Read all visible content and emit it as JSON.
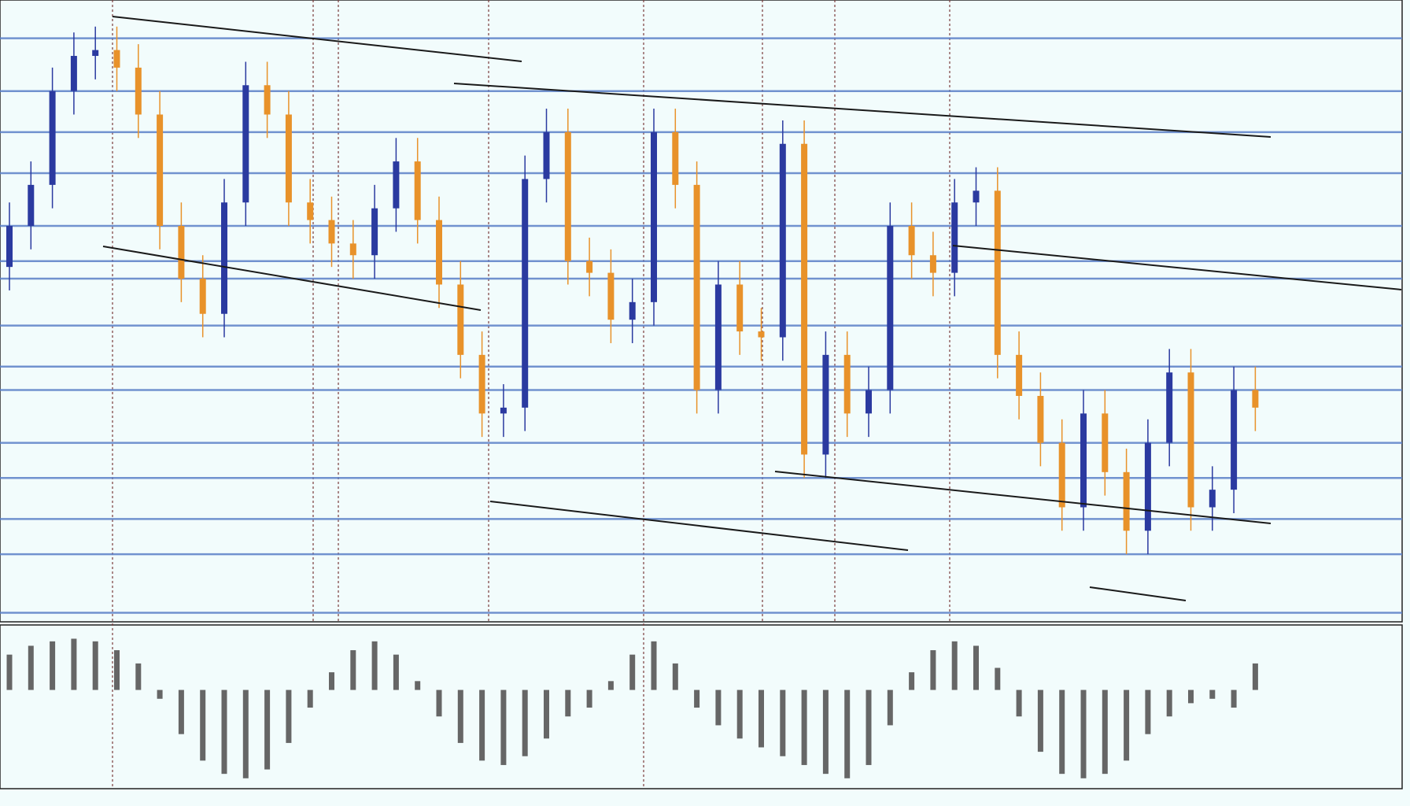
{
  "chart_data": {
    "type": "candlestick",
    "open": [
      60,
      67,
      74,
      90,
      96,
      97,
      94,
      86,
      67,
      58,
      52,
      71,
      91,
      86,
      71,
      68,
      64,
      62,
      70,
      78,
      68,
      57,
      45,
      35,
      36,
      75,
      83,
      61,
      59,
      51,
      54,
      83,
      74,
      39,
      57,
      49,
      48,
      81,
      28,
      45,
      35,
      39,
      67,
      62,
      59,
      71,
      73,
      45,
      38,
      30,
      19,
      35,
      25,
      15,
      30,
      42,
      19,
      22,
      39
    ],
    "high": [
      71,
      78,
      94,
      100,
      101,
      101,
      98,
      90,
      71,
      62,
      75,
      95,
      95,
      90,
      75,
      72,
      68,
      74,
      82,
      82,
      72,
      61,
      49,
      40,
      79,
      87,
      87,
      65,
      63,
      58,
      87,
      87,
      78,
      61,
      61,
      53,
      85,
      85,
      49,
      49,
      43,
      71,
      71,
      66,
      75,
      77,
      77,
      49,
      42,
      34,
      39,
      39,
      29,
      34,
      46,
      46,
      26,
      43,
      43
    ],
    "low": [
      56,
      63,
      70,
      86,
      92,
      90,
      82,
      63,
      54,
      48,
      48,
      67,
      82,
      67,
      64,
      60,
      58,
      58,
      66,
      64,
      53,
      41,
      31,
      31,
      32,
      71,
      57,
      55,
      47,
      47,
      50,
      70,
      35,
      35,
      45,
      44,
      44,
      24,
      24,
      31,
      31,
      35,
      58,
      55,
      55,
      67,
      41,
      34,
      26,
      15,
      15,
      21,
      11,
      11,
      26,
      15,
      15,
      18,
      32
    ],
    "close": [
      67,
      74,
      90,
      96,
      97,
      94,
      86,
      67,
      58,
      52,
      71,
      91,
      86,
      71,
      68,
      64,
      62,
      70,
      78,
      68,
      57,
      45,
      35,
      36,
      75,
      83,
      61,
      59,
      51,
      54,
      83,
      74,
      39,
      57,
      49,
      48,
      81,
      28,
      45,
      35,
      39,
      67,
      62,
      59,
      71,
      73,
      45,
      38,
      30,
      19,
      35,
      25,
      15,
      30,
      42,
      19,
      22,
      39,
      36
    ],
    "up_color": "#2b3aa0",
    "down_color": "#e8922a",
    "ylim": [
      0,
      105
    ],
    "levels": [
      99,
      90,
      83,
      76,
      67,
      61,
      58,
      50,
      43,
      39,
      30,
      24,
      17,
      11,
      1
    ],
    "level_color": "#5b80c8",
    "oscillator": {
      "type": "bar",
      "color": "#666666",
      "ylim": [
        -110,
        70
      ],
      "values": [
        40,
        50,
        55,
        58,
        55,
        45,
        30,
        -10,
        -50,
        -80,
        -95,
        -100,
        -90,
        -60,
        -20,
        20,
        45,
        55,
        40,
        10,
        -30,
        -60,
        -80,
        -85,
        -75,
        -55,
        -30,
        -20,
        10,
        40,
        55,
        30,
        -20,
        -40,
        -55,
        -65,
        -75,
        -85,
        -95,
        -100,
        -85,
        -40,
        20,
        45,
        55,
        50,
        25,
        -30,
        -70,
        -95,
        -100,
        -95,
        -80,
        -50,
        -30,
        -15,
        -10,
        -20,
        30
      ]
    }
  }
}
